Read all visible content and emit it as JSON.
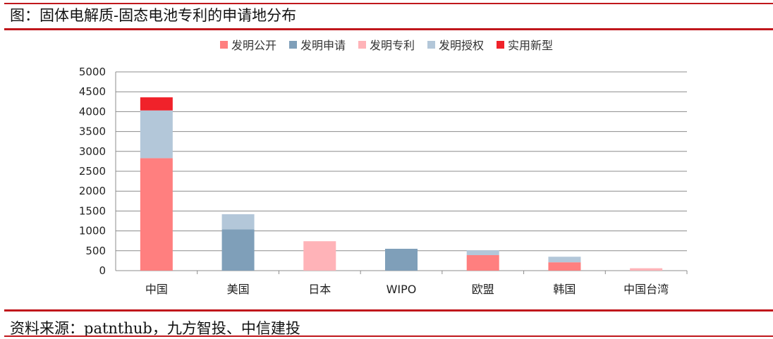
{
  "header": {
    "title": "图：固体电解质-固态电池专利的申请地分布",
    "source": "资料来源：patnthub，九方智投、中信建投"
  },
  "chart_data": {
    "type": "bar",
    "stacked": true,
    "categories": [
      "中国",
      "美国",
      "日本",
      "WIPO",
      "欧盟",
      "韩国",
      "中国台湾"
    ],
    "series": [
      {
        "name": "发明公开",
        "color": "#ff7f7f",
        "values": [
          2830,
          0,
          0,
          0,
          390,
          210,
          0
        ]
      },
      {
        "name": "发明申请",
        "color": "#7f9fb9",
        "values": [
          0,
          1040,
          0,
          550,
          0,
          0,
          0
        ]
      },
      {
        "name": "发明专利",
        "color": "#ffb3b8",
        "values": [
          0,
          0,
          740,
          0,
          0,
          0,
          60
        ]
      },
      {
        "name": "发明授权",
        "color": "#b3c7d9",
        "values": [
          1200,
          380,
          0,
          0,
          120,
          140,
          0
        ]
      },
      {
        "name": "实用新型",
        "color": "#f0222a",
        "values": [
          330,
          0,
          0,
          0,
          0,
          0,
          0
        ]
      }
    ],
    "ylim": [
      0,
      5000
    ],
    "yticks": [
      "0",
      "500",
      "1000",
      "1500",
      "2000",
      "2500",
      "3000",
      "3500",
      "4000",
      "4500",
      "5000"
    ],
    "grid": true,
    "legend": "top"
  }
}
